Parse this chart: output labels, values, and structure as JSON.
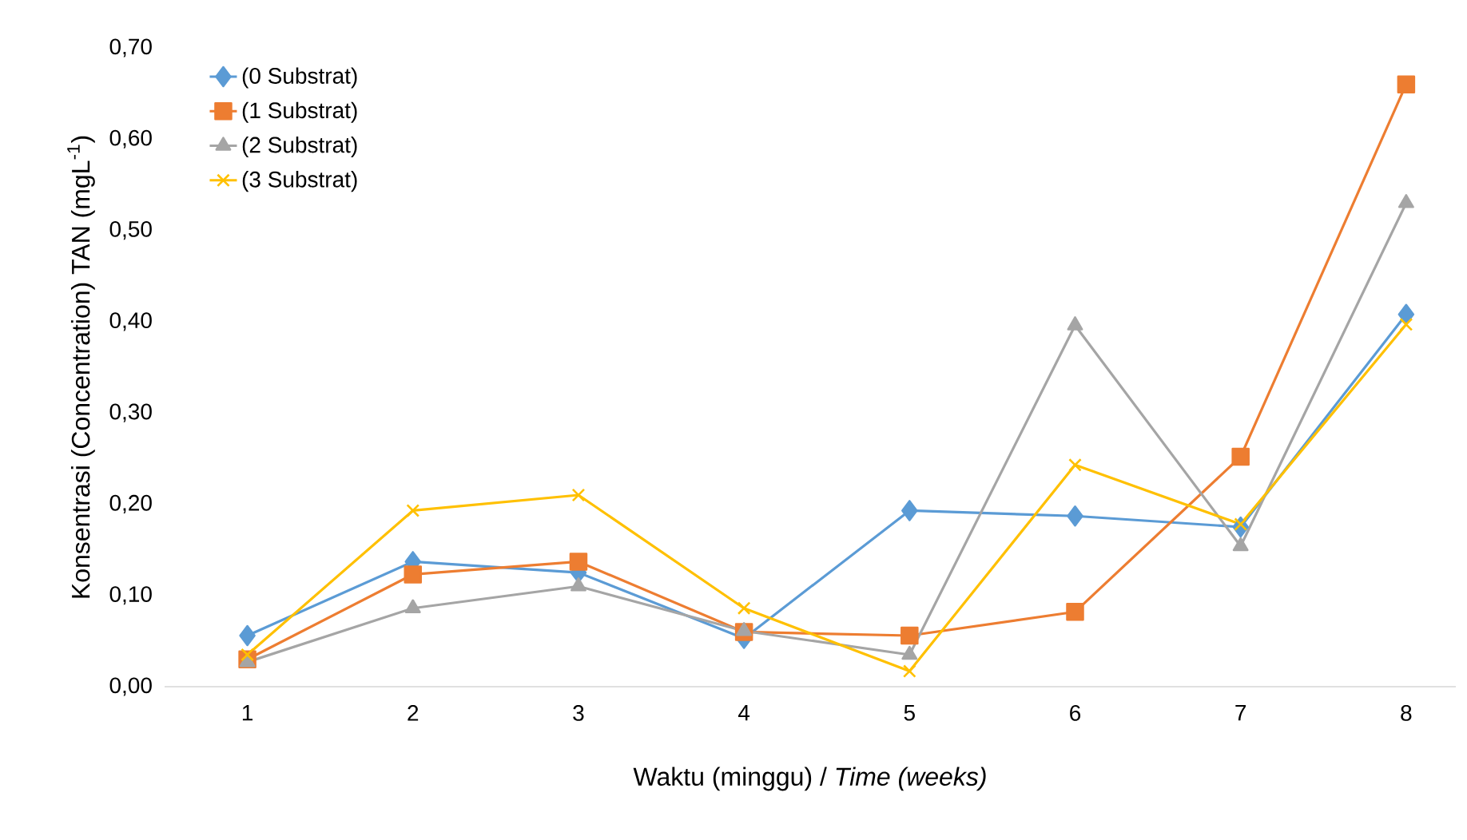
{
  "chart_data": {
    "type": "line",
    "xlabel": "Waktu (minggu) / *Time (weeks)*",
    "ylabel": "Konsentrasi (Concentration) TAN  (mgL$^{-1}$)",
    "categories": [
      "1",
      "2",
      "3",
      "4",
      "5",
      "6",
      "7",
      "8"
    ],
    "series": [
      {
        "name": "(0 Substrat)",
        "color": "#5b9bd5",
        "marker": "diamond",
        "values": [
          0.056,
          0.137,
          0.125,
          0.053,
          0.193,
          0.187,
          0.175,
          0.408
        ]
      },
      {
        "name": "(1 Substrat)",
        "color": "#ed7d31",
        "marker": "square",
        "values": [
          0.03,
          0.123,
          0.137,
          0.06,
          0.056,
          0.082,
          0.252,
          0.66
        ]
      },
      {
        "name": "(2 Substrat)",
        "color": "#a5a5a5",
        "marker": "triangle",
        "values": [
          0.027,
          0.086,
          0.11,
          0.061,
          0.035,
          0.396,
          0.154,
          0.53
        ]
      },
      {
        "name": "(3 Substrat)",
        "color": "#ffc000",
        "marker": "cross",
        "values": [
          0.035,
          0.193,
          0.21,
          0.086,
          0.017,
          0.243,
          0.178,
          0.397
        ]
      }
    ],
    "ylim": [
      0,
      0.7
    ],
    "yticks": [
      {
        "value": 0,
        "label": "0,00"
      },
      {
        "value": 0.1,
        "label": "0,10"
      },
      {
        "value": 0.2,
        "label": "0,20"
      },
      {
        "value": 0.3,
        "label": "0,30"
      },
      {
        "value": 0.4,
        "label": "0,40"
      },
      {
        "value": 0.5,
        "label": "0,50"
      },
      {
        "value": 0.6,
        "label": "0,60"
      },
      {
        "value": 0.7,
        "label": "0,70"
      }
    ],
    "grid": false,
    "legend": "top left",
    "line_style": "solid"
  }
}
